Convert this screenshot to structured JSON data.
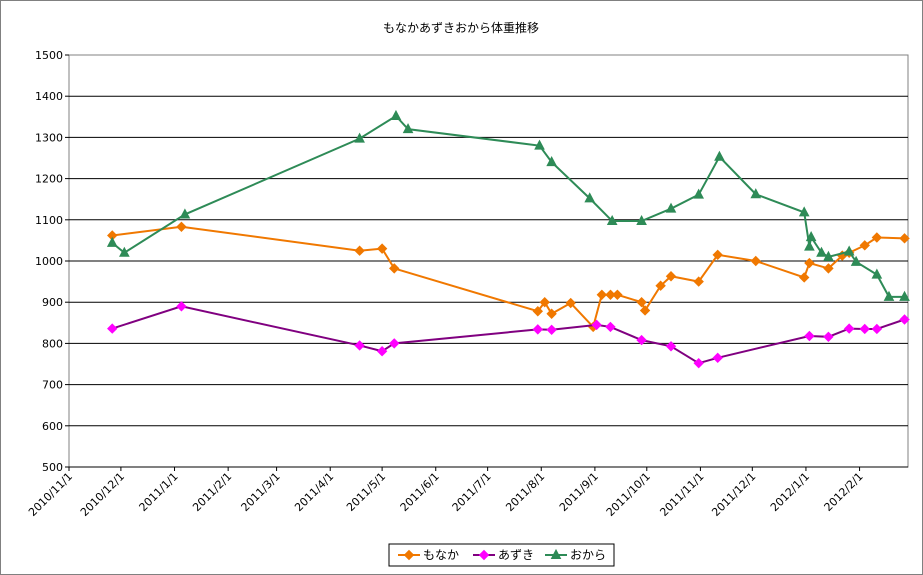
{
  "chart_data": {
    "type": "line",
    "title": "もなかあずきおから体重推移",
    "xlabel": "",
    "ylabel": "",
    "ylim": [
      500,
      1500
    ],
    "yticks": [
      500,
      600,
      700,
      800,
      900,
      1000,
      1100,
      1200,
      1300,
      1400,
      1500
    ],
    "xlim": [
      "2010-11-01",
      "2012-02-29"
    ],
    "xticks": [
      "2010/11/1",
      "2010/12/1",
      "2011/1/1",
      "2011/2/1",
      "2011/3/1",
      "2011/4/1",
      "2011/5/1",
      "2011/6/1",
      "2011/7/1",
      "2011/8/1",
      "2011/9/1",
      "2011/10/1",
      "2011/11/1",
      "2011/12/1",
      "2012/1/1",
      "2012/2/1"
    ],
    "grid": "horizontal",
    "legend_position": "bottom",
    "series": [
      {
        "name": "もなか",
        "color": "#F07800",
        "marker": "diamond",
        "points": [
          [
            "2010-11-26",
            1062
          ],
          [
            "2011-01-05",
            1083
          ],
          [
            "2011-04-18",
            1025
          ],
          [
            "2011-05-01",
            1030
          ],
          [
            "2011-05-08",
            982
          ],
          [
            "2011-07-30",
            878
          ],
          [
            "2011-08-03",
            900
          ],
          [
            "2011-08-07",
            872
          ],
          [
            "2011-08-18",
            898
          ],
          [
            "2011-08-31",
            840
          ],
          [
            "2011-09-05",
            918
          ],
          [
            "2011-09-10",
            918
          ],
          [
            "2011-09-14",
            918
          ],
          [
            "2011-09-28",
            900
          ],
          [
            "2011-09-30",
            880
          ],
          [
            "2011-10-09",
            940
          ],
          [
            "2011-10-15",
            963
          ],
          [
            "2011-10-31",
            950
          ],
          [
            "2011-11-11",
            1015
          ],
          [
            "2011-12-03",
            1000
          ],
          [
            "2011-12-31",
            960
          ],
          [
            "2012-01-03",
            995
          ],
          [
            "2012-01-14",
            982
          ],
          [
            "2012-01-22",
            1013
          ],
          [
            "2012-01-26",
            1020
          ],
          [
            "2012-02-04",
            1038
          ],
          [
            "2012-02-11",
            1057
          ],
          [
            "2012-02-27",
            1055
          ]
        ]
      },
      {
        "name": "あずき",
        "color": "#800080",
        "marker_color": "#FF00FF",
        "marker": "diamond",
        "points": [
          [
            "2010-11-26",
            836
          ],
          [
            "2011-01-05",
            890
          ],
          [
            "2011-04-18",
            795
          ],
          [
            "2011-05-01",
            781
          ],
          [
            "2011-05-08",
            800
          ],
          [
            "2011-07-30",
            834
          ],
          [
            "2011-08-07",
            833
          ],
          [
            "2011-09-02",
            845
          ],
          [
            "2011-09-10",
            840
          ],
          [
            "2011-09-28",
            808
          ],
          [
            "2011-10-15",
            793
          ],
          [
            "2011-10-31",
            752
          ],
          [
            "2011-11-11",
            765
          ],
          [
            "2012-01-03",
            818
          ],
          [
            "2012-01-14",
            816
          ],
          [
            "2012-01-26",
            836
          ],
          [
            "2012-02-04",
            835
          ],
          [
            "2012-02-11",
            835
          ],
          [
            "2012-02-27",
            858
          ]
        ]
      },
      {
        "name": "おから",
        "color": "#2E8B57",
        "marker": "triangle",
        "points": [
          [
            "2010-11-26",
            1044
          ],
          [
            "2010-12-03",
            1020
          ],
          [
            "2011-01-07",
            1113
          ],
          [
            "2011-04-18",
            1297
          ],
          [
            "2011-05-09",
            1352
          ],
          [
            "2011-05-16",
            1320
          ],
          [
            "2011-07-31",
            1280
          ],
          [
            "2011-08-07",
            1240
          ],
          [
            "2011-08-29",
            1152
          ],
          [
            "2011-09-11",
            1097
          ],
          [
            "2011-09-28",
            1097
          ],
          [
            "2011-10-15",
            1127
          ],
          [
            "2011-10-31",
            1161
          ],
          [
            "2011-11-12",
            1253
          ],
          [
            "2011-12-03",
            1162
          ],
          [
            "2011-12-31",
            1118
          ],
          [
            "2012-01-03",
            1035
          ],
          [
            "2012-01-04",
            1058
          ],
          [
            "2012-01-10",
            1020
          ],
          [
            "2012-01-14",
            1010
          ],
          [
            "2012-01-26",
            1023
          ],
          [
            "2012-01-30",
            998
          ],
          [
            "2012-02-11",
            967
          ],
          [
            "2012-02-18",
            913
          ],
          [
            "2012-02-27",
            913
          ]
        ]
      }
    ]
  }
}
